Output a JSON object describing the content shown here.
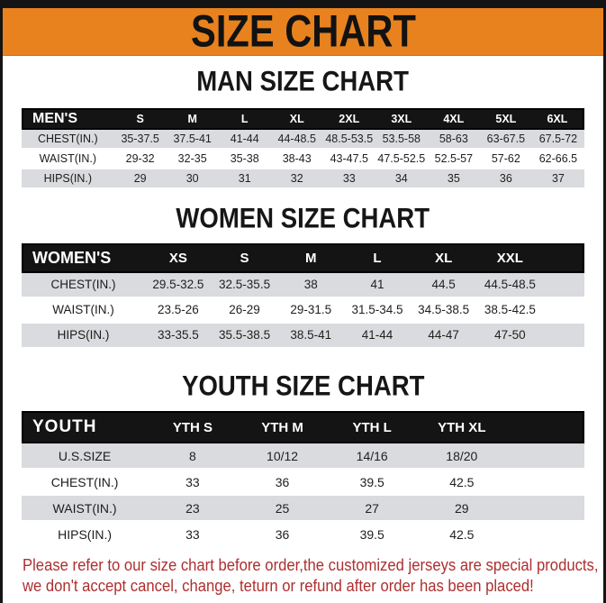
{
  "banner": {
    "title": "SIZE CHART"
  },
  "sections": [
    {
      "title": "MAN SIZE CHART",
      "header_label": "MEN'S",
      "sizes": [
        "S",
        "M",
        "L",
        "XL",
        "2XL",
        "3XL",
        "4XL",
        "5XL",
        "6XL"
      ],
      "rows": [
        {
          "label": "CHEST(IN.)",
          "values": [
            "35-37.5",
            "37.5-41",
            "41-44",
            "44-48.5",
            "48.5-53.5",
            "53.5-58",
            "58-63",
            "63-67.5",
            "67.5-72"
          ]
        },
        {
          "label": "WAIST(IN.)",
          "values": [
            "29-32",
            "32-35",
            "35-38",
            "38-43",
            "43-47.5",
            "47.5-52.5",
            "52.5-57",
            "57-62",
            "62-66.5"
          ]
        },
        {
          "label": "HIPS(IN.)",
          "values": [
            "29",
            "30",
            "31",
            "32",
            "33",
            "34",
            "35",
            "36",
            "37"
          ]
        }
      ]
    },
    {
      "title": "WOMEN SIZE CHART",
      "header_label": "WOMEN'S",
      "sizes": [
        "XS",
        "S",
        "M",
        "L",
        "XL",
        "XXL"
      ],
      "rows": [
        {
          "label": "CHEST(IN.)",
          "values": [
            "29.5-32.5",
            "32.5-35.5",
            "38",
            "41",
            "44.5",
            "44.5-48.5"
          ]
        },
        {
          "label": "WAIST(IN.)",
          "values": [
            "23.5-26",
            "26-29",
            "29-31.5",
            "31.5-34.5",
            "34.5-38.5",
            "38.5-42.5"
          ]
        },
        {
          "label": "HIPS(IN.)",
          "values": [
            "33-35.5",
            "35.5-38.5",
            "38.5-41",
            "41-44",
            "44-47",
            "47-50"
          ]
        }
      ]
    },
    {
      "title": "YOUTH SIZE CHART",
      "header_label": "YOUTH",
      "sizes": [
        "YTH S",
        "YTH M",
        "YTH L",
        "YTH XL"
      ],
      "rows": [
        {
          "label": "U.S.SIZE",
          "values": [
            "8",
            "10/12",
            "14/16",
            "18/20"
          ]
        },
        {
          "label": "CHEST(IN.)",
          "values": [
            "33",
            "36",
            "39.5",
            "42.5"
          ]
        },
        {
          "label": "WAIST(IN.)",
          "values": [
            "23",
            "25",
            "27",
            "29"
          ]
        },
        {
          "label": "HIPS(IN.)",
          "values": [
            "33",
            "36",
            "39.5",
            "42.5"
          ]
        }
      ]
    }
  ],
  "footer": {
    "line1": "Please refer to our size chart before order,the customized jerseys are special products,",
    "line2": "we don't accept cancel, change, teturn or refund after order has been placed!"
  },
  "colors": {
    "accent_orange": "#e8821e",
    "header_black": "#141414",
    "row_gray": "#d9dbde",
    "warning_red": "#ad2f2f"
  }
}
